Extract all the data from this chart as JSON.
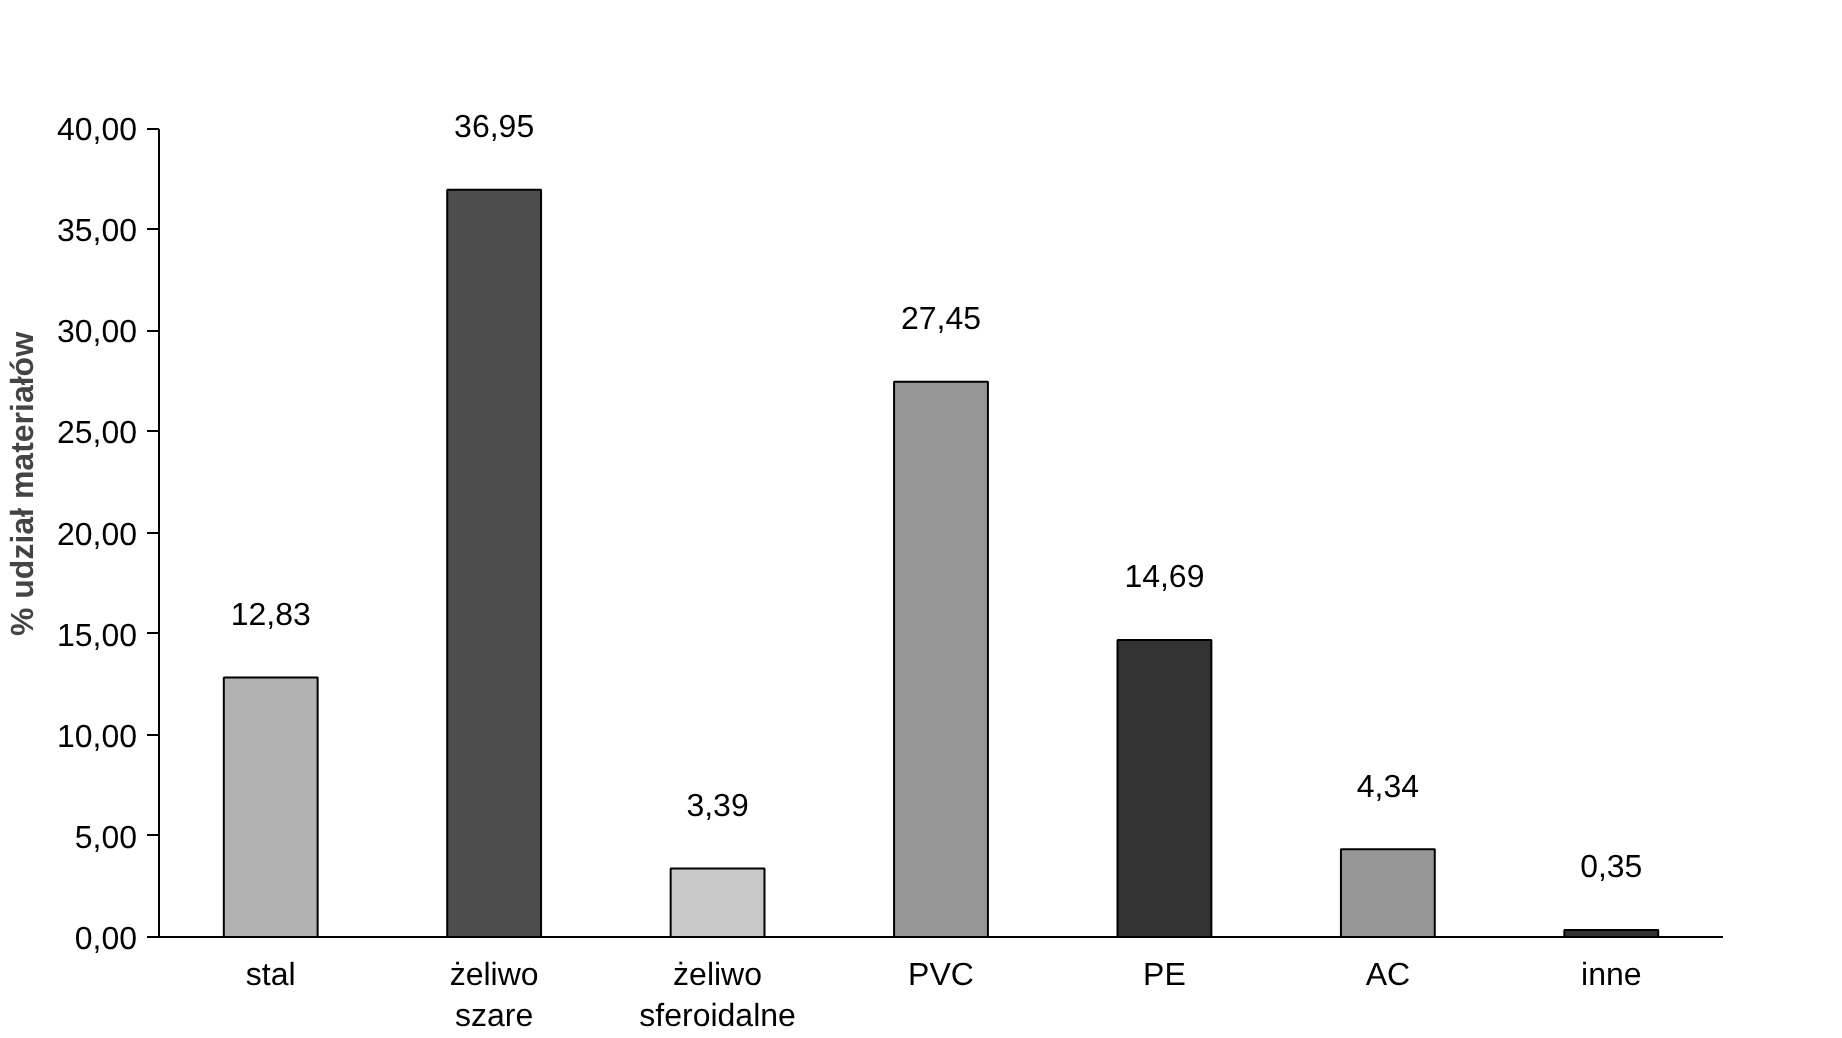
{
  "chart_data": {
    "type": "bar",
    "ylabel": "% udział materiałów",
    "categories": [
      "stal",
      "żeliwo szare",
      "żeliwo sferoidalne",
      "PVC",
      "PE",
      "AC",
      "inne"
    ],
    "values": [
      12.83,
      36.95,
      3.39,
      27.45,
      14.69,
      4.34,
      0.35
    ],
    "colors": [
      "#b2b2b2",
      "#4d4d4d",
      "#c8c8c8",
      "#969696",
      "#333333",
      "#969696",
      "#333333"
    ],
    "value_labels": [
      "12,83",
      "36,95",
      "3,39",
      "27,45",
      "14,69",
      "4,34",
      "0,35"
    ],
    "ylim": [
      0,
      40
    ],
    "yticks": [
      {
        "value": 0,
        "label": "0,00"
      },
      {
        "value": 5,
        "label": "5,00"
      },
      {
        "value": 10,
        "label": "10,00"
      },
      {
        "value": 15,
        "label": "15,00"
      },
      {
        "value": 20,
        "label": "20,00"
      },
      {
        "value": 25,
        "label": "25,00"
      },
      {
        "value": 30,
        "label": "30,00"
      },
      {
        "value": 35,
        "label": "35,00"
      },
      {
        "value": 40,
        "label": "40,00"
      }
    ],
    "grid": false
  }
}
